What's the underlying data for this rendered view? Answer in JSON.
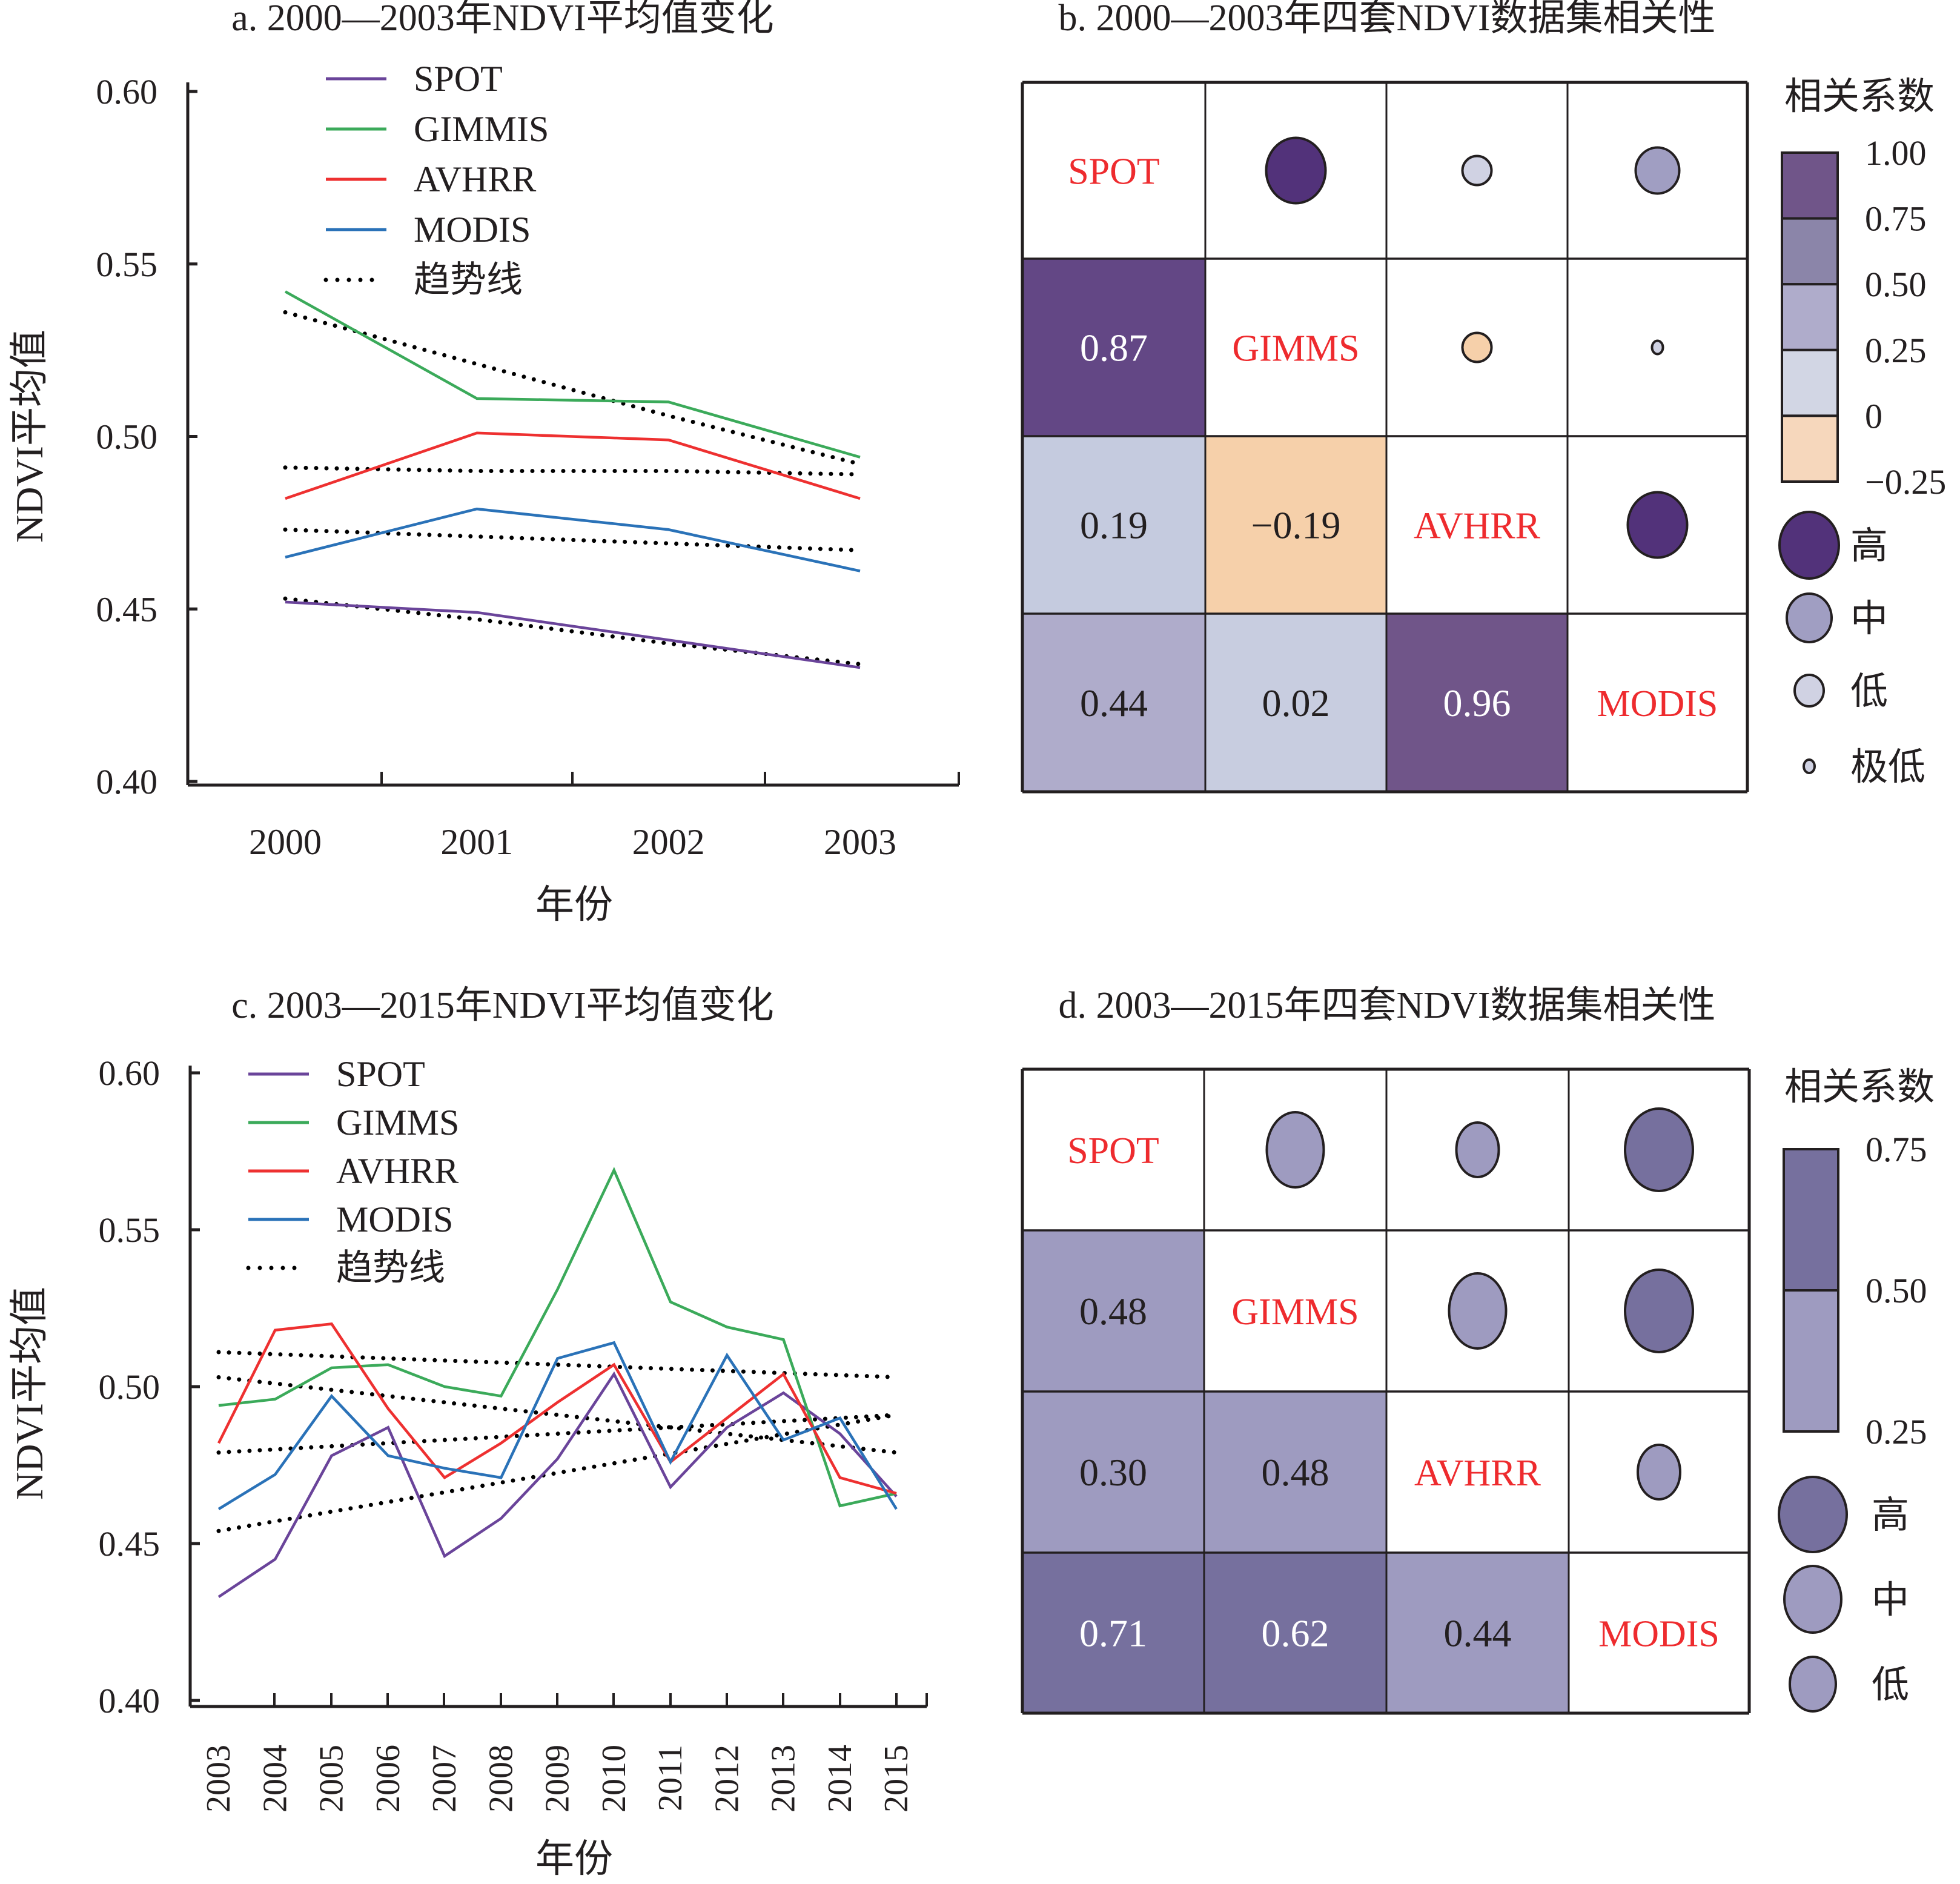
{
  "chart_data": [
    {
      "id": "a",
      "type": "line",
      "title": "a. 2000—2003年NDVI平均值变化",
      "xlabel": "年份",
      "ylabel": "NDVI平均值",
      "ylim": [
        0.4,
        0.6
      ],
      "yticks": [
        "0.40",
        "0.45",
        "0.50",
        "0.55",
        "0.60"
      ],
      "ytick_values": [
        0.4,
        0.45,
        0.5,
        0.55,
        0.6
      ],
      "x": [
        "2000",
        "2001",
        "2002",
        "2003"
      ],
      "legend_position": "top",
      "series": [
        {
          "name": "SPOT",
          "color": "#6A449A",
          "values": [
            0.452,
            0.449,
            0.441,
            0.433
          ],
          "trend": [
            0.453,
            0.447,
            0.44,
            0.434
          ]
        },
        {
          "name": "GIMMIS",
          "color": "#3BAA5A",
          "values": [
            0.542,
            0.511,
            0.51,
            0.494
          ],
          "trend": [
            0.536,
            0.521,
            0.506,
            0.492
          ]
        },
        {
          "name": "AVHRR",
          "color": "#EE3030",
          "values": [
            0.482,
            0.501,
            0.499,
            0.482
          ],
          "trend": [
            0.491,
            0.49,
            0.49,
            0.489
          ]
        },
        {
          "name": "MODIS",
          "color": "#2A72B8",
          "values": [
            0.465,
            0.479,
            0.473,
            0.461
          ],
          "trend": [
            0.473,
            0.471,
            0.469,
            0.467
          ]
        }
      ],
      "trend_label": "趋势线"
    },
    {
      "id": "b",
      "type": "heatmap",
      "title": "b. 2000—2003年四套NDVI数据集相关性",
      "labels": [
        "SPOT",
        "GIMMS",
        "AVHRR",
        "MODIS"
      ],
      "matrix": [
        [
          1,
          0.87,
          0.19,
          0.44
        ],
        [
          0.87,
          1,
          -0.19,
          0.02
        ],
        [
          0.19,
          -0.19,
          1,
          0.96
        ],
        [
          0.44,
          0.02,
          0.96,
          1
        ]
      ],
      "lower_labels": [
        [
          "",
          "",
          "",
          ""
        ],
        [
          "0.87",
          "",
          "",
          ""
        ],
        [
          "0.19",
          "−0.19",
          "",
          ""
        ],
        [
          "0.44",
          "0.02",
          "0.96",
          ""
        ]
      ],
      "colorbar_title": "相关系数",
      "colorbar_ticks": [
        "1.00",
        "0.75",
        "0.50",
        "0.25",
        "0",
        "−0.25"
      ],
      "colorbar_colors": [
        "#705589",
        "#8B85A9",
        "#AFACCB",
        "#D2D6E4",
        "#F6D7BC"
      ],
      "size_legend": [
        "高",
        "中",
        "低",
        "极低"
      ]
    },
    {
      "id": "c",
      "type": "line",
      "title": "c. 2003—2015年NDVI平均值变化",
      "xlabel": "年份",
      "ylabel": "NDVI平均值",
      "ylim": [
        0.4,
        0.6
      ],
      "yticks": [
        "0.40",
        "0.45",
        "0.50",
        "0.55",
        "0.60"
      ],
      "ytick_values": [
        0.4,
        0.45,
        0.5,
        0.55,
        0.6
      ],
      "x": [
        "2003",
        "2004",
        "2005",
        "2006",
        "2007",
        "2008",
        "2009",
        "2010",
        "2011",
        "2012",
        "2013",
        "2014",
        "2015"
      ],
      "legend_position": "top-left",
      "series": [
        {
          "name": "SPOT",
          "color": "#6A449A",
          "values": [
            0.433,
            0.445,
            0.478,
            0.487,
            0.446,
            0.458,
            0.477,
            0.504,
            0.468,
            0.487,
            0.498,
            0.485,
            0.465
          ],
          "trend": [
            0.454,
            0.491
          ]
        },
        {
          "name": "GIMMS",
          "color": "#3BAA5A",
          "values": [
            0.494,
            0.496,
            0.506,
            0.507,
            0.5,
            0.497,
            0.531,
            0.569,
            0.527,
            0.519,
            0.515,
            0.462,
            0.466
          ],
          "trend": [
            0.511,
            0.503
          ]
        },
        {
          "name": "AVHRR",
          "color": "#EE3030",
          "values": [
            0.482,
            0.518,
            0.52,
            0.493,
            0.471,
            0.482,
            0.495,
            0.507,
            0.476,
            0.49,
            0.504,
            0.471,
            0.466
          ],
          "trend": [
            0.503,
            0.479
          ]
        },
        {
          "name": "MODIS",
          "color": "#2A72B8",
          "values": [
            0.461,
            0.472,
            0.497,
            0.478,
            0.474,
            0.471,
            0.509,
            0.514,
            0.476,
            0.51,
            0.483,
            0.49,
            0.461
          ],
          "trend": [
            0.479,
            0.491
          ]
        }
      ],
      "trend_label": "趋势线"
    },
    {
      "id": "d",
      "type": "heatmap",
      "title": "d. 2003—2015年四套NDVI数据集相关性",
      "labels": [
        "SPOT",
        "GIMMS",
        "AVHRR",
        "MODIS"
      ],
      "matrix": [
        [
          1,
          0.48,
          0.3,
          0.71
        ],
        [
          0.48,
          1,
          0.48,
          0.62
        ],
        [
          0.3,
          0.48,
          1,
          0.44
        ],
        [
          0.71,
          0.62,
          0.44,
          1
        ]
      ],
      "lower_labels": [
        [
          "",
          "",
          "",
          ""
        ],
        [
          "0.48",
          "",
          "",
          ""
        ],
        [
          "0.30",
          "0.48",
          "",
          ""
        ],
        [
          "0.71",
          "0.62",
          "0.44",
          ""
        ]
      ],
      "colorbar_title": "相关系数",
      "colorbar_ticks": [
        "0.75",
        "0.50",
        "0.25"
      ],
      "colorbar_colors": [
        "#76709E",
        "#9E9BC0"
      ],
      "size_legend": [
        "高",
        "中",
        "低"
      ]
    }
  ]
}
